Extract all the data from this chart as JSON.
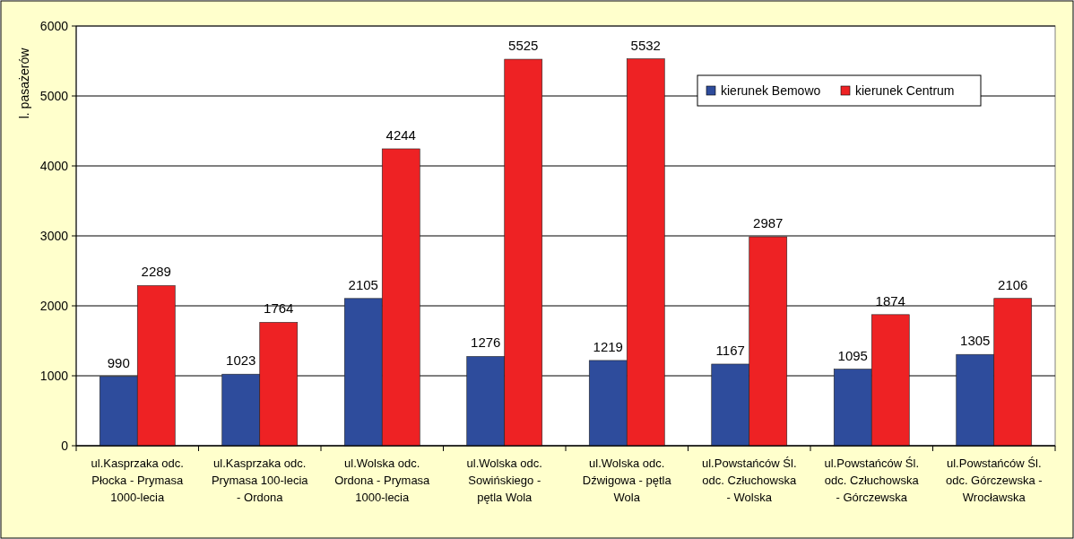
{
  "chart_data": {
    "type": "bar",
    "ylabel": "l. pasażerów",
    "categories": [
      "ul.Kasprzaka odc. Płocka - Prymasa 1000-lecia",
      "ul.Kasprzaka odc. Prymasa 100-lecia - Ordona",
      "ul.Wolska odc. Ordona - Prymasa 1000-lecia",
      "ul.Wolska odc. Sowińskiego - pętla Wola",
      "ul.Wolska odc. Dźwigowa - pętla Wola",
      "ul.Powstańców Śl. odc. Człuchowska - Wolska",
      "ul.Powstańców Śl. odc. Człuchowska - Górczewska",
      "ul.Powstańców Śl. odc. Górczewska - Wrocławska"
    ],
    "series": [
      {
        "name": "kierunek Bemowo",
        "color": "#2e4c9c",
        "values": [
          990,
          1023,
          2105,
          1276,
          1219,
          1167,
          1095,
          1305
        ]
      },
      {
        "name": "kierunek Centrum",
        "color": "#ee2224",
        "values": [
          2289,
          1764,
          4244,
          5525,
          5532,
          2987,
          1874,
          2106
        ]
      }
    ],
    "ylim": [
      0,
      6000
    ],
    "yticks": [
      0,
      1000,
      2000,
      3000,
      4000,
      5000,
      6000
    ],
    "grid": "y",
    "legend": "top right",
    "data_labels": true
  }
}
